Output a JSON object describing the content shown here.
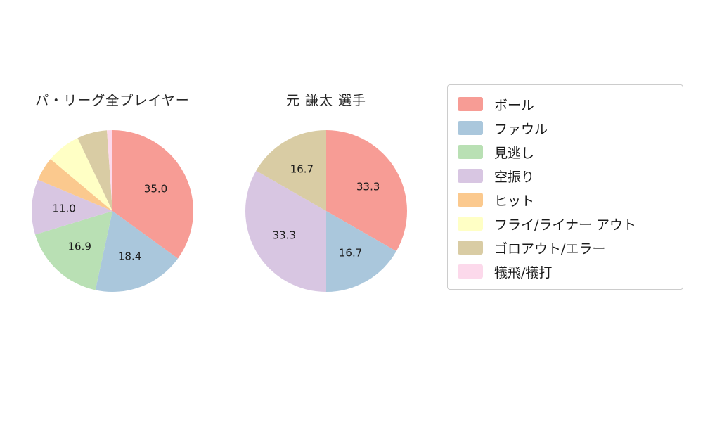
{
  "page": {
    "background": "#ffffff"
  },
  "chart_data": [
    {
      "type": "pie",
      "title": "パ・リーグ全プレイヤー",
      "categories": [
        "ボール",
        "ファウル",
        "見逃し",
        "空振り",
        "ヒット",
        "フライ/ライナー アウト",
        "ゴロアウト/エラー",
        "犠飛/犠打"
      ],
      "values": [
        35.0,
        18.4,
        16.9,
        11.0,
        4.8,
        6.8,
        6.0,
        1.1
      ],
      "value_labels": [
        "35.0",
        "18.4",
        "16.9",
        "11.0",
        null,
        null,
        null,
        null
      ],
      "colors": [
        "#F79C95",
        "#AAC7DC",
        "#B9E0B4",
        "#D8C6E2",
        "#FBC98E",
        "#FFFFC5",
        "#D9CCA4",
        "#FCD9EB"
      ],
      "start_angle": "top",
      "direction": "clockwise"
    },
    {
      "type": "pie",
      "title": "元 謙太  選手",
      "categories": [
        "ボール",
        "ファウル",
        "見逃し",
        "空振り",
        "ヒット",
        "フライ/ライナー アウト",
        "ゴロアウト/エラー",
        "犠飛/犠打"
      ],
      "values": [
        33.3,
        16.7,
        0,
        33.3,
        0,
        0,
        16.7,
        0
      ],
      "value_labels": [
        "33.3",
        "16.7",
        null,
        "33.3",
        null,
        null,
        "16.7",
        null
      ],
      "colors": [
        "#F79C95",
        "#AAC7DC",
        "#B9E0B4",
        "#D8C6E2",
        "#FBC98E",
        "#FFFFC5",
        "#D9CCA4",
        "#FCD9EB"
      ],
      "start_angle": "top",
      "direction": "clockwise"
    }
  ],
  "legend": {
    "items": [
      {
        "label": "ボール",
        "color": "#F79C95"
      },
      {
        "label": "ファウル",
        "color": "#AAC7DC"
      },
      {
        "label": "見逃し",
        "color": "#B9E0B4"
      },
      {
        "label": "空振り",
        "color": "#D8C6E2"
      },
      {
        "label": "ヒット",
        "color": "#FBC98E"
      },
      {
        "label": "フライ/ライナー アウト",
        "color": "#FFFFC5"
      },
      {
        "label": "ゴロアウト/エラー",
        "color": "#D9CCA4"
      },
      {
        "label": "犠飛/犠打",
        "color": "#FCD9EB"
      }
    ]
  }
}
